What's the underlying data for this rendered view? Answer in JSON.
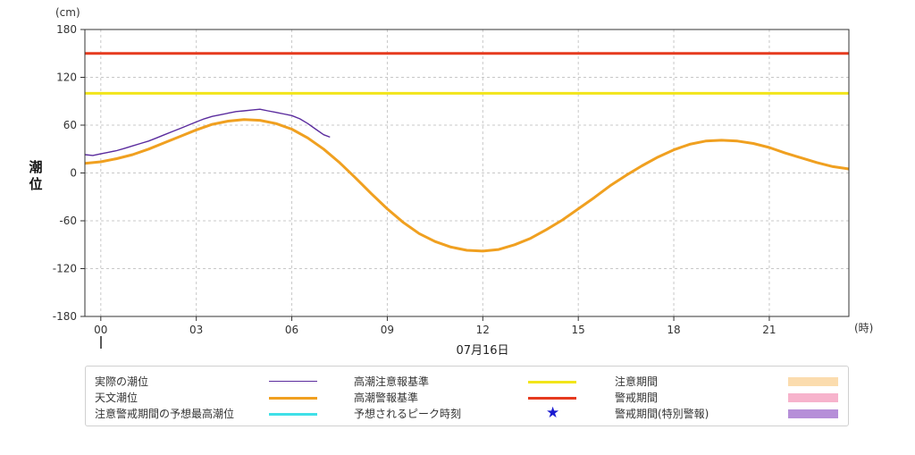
{
  "chart_data": {
    "type": "line",
    "y_unit_label": "(cm)",
    "x_unit_label": "(時)",
    "ylabel": "潮位",
    "date_label": "07月16日",
    "ylim": [
      -180,
      180
    ],
    "yticks": [
      180,
      120,
      60,
      0,
      -60,
      -120,
      -180
    ],
    "xlim": [
      -0.5,
      23.5
    ],
    "xticks": [
      0,
      3,
      6,
      9,
      12,
      15,
      18,
      21
    ],
    "xtick_labels": [
      "00",
      "03",
      "06",
      "09",
      "12",
      "15",
      "18",
      "21"
    ],
    "grid": true,
    "series": [
      {
        "name": "実際の潮位",
        "color": "#5b2c9e",
        "x": [
          -0.5,
          -0.25,
          0,
          0.25,
          0.5,
          0.75,
          1,
          1.25,
          1.5,
          1.75,
          2,
          2.25,
          2.5,
          2.75,
          3,
          3.25,
          3.5,
          3.75,
          4,
          4.25,
          4.5,
          4.75,
          5,
          5.25,
          5.5,
          5.75,
          6,
          6.25,
          6.5,
          6.75,
          7,
          7.2
        ],
        "values": [
          23,
          22,
          24,
          26,
          28,
          31,
          34,
          37,
          40,
          44,
          48,
          52,
          56,
          60,
          64,
          68,
          71,
          73,
          75,
          77,
          78,
          79,
          80,
          78,
          76,
          74,
          72,
          68,
          62,
          55,
          48,
          45
        ]
      },
      {
        "name": "天文潮位",
        "color": "#f0a020",
        "x": [
          -0.5,
          0,
          0.5,
          1,
          1.5,
          2,
          2.5,
          3,
          3.5,
          4,
          4.5,
          5,
          5.5,
          6,
          6.5,
          7,
          7.5,
          8,
          8.5,
          9,
          9.5,
          10,
          10.5,
          11,
          11.5,
          12,
          12.5,
          13,
          13.5,
          14,
          14.5,
          15,
          15.5,
          16,
          16.5,
          17,
          17.5,
          18,
          18.5,
          19,
          19.5,
          20,
          20.5,
          21,
          21.5,
          22,
          22.5,
          23,
          23.5
        ],
        "values": [
          12,
          14,
          18,
          23,
          30,
          38,
          46,
          54,
          61,
          65,
          67,
          66,
          62,
          55,
          44,
          30,
          13,
          -6,
          -26,
          -45,
          -62,
          -76,
          -86,
          -93,
          -97,
          -98,
          -96,
          -90,
          -82,
          -71,
          -59,
          -45,
          -31,
          -16,
          -3,
          9,
          20,
          29,
          36,
          40,
          41,
          40,
          37,
          32,
          25,
          19,
          13,
          8,
          5
        ]
      }
    ],
    "reference_lines": [
      {
        "name": "高潮注意報基準",
        "value": 100,
        "color": "#f2e51a"
      },
      {
        "name": "高潮警報基準",
        "value": 150,
        "color": "#e63a1e"
      }
    ]
  },
  "legend": {
    "col1": [
      {
        "label": "実際の潮位",
        "color": "#5b2c9e",
        "kind": "thin-line"
      },
      {
        "label": "天文潮位",
        "color": "#f0a020",
        "kind": "thick-line"
      },
      {
        "label": "注意警戒期間の予想最高潮位",
        "color": "#40e0e8",
        "kind": "thick-line"
      }
    ],
    "col2": [
      {
        "label": "高潮注意報基準",
        "color": "#f2e51a",
        "kind": "thick-line"
      },
      {
        "label": "高潮警報基準",
        "color": "#e63a1e",
        "kind": "thick-line"
      },
      {
        "label": "予想されるピーク時刻",
        "color": "#1a1ad0",
        "kind": "star",
        "symbol": "★"
      }
    ],
    "col3": [
      {
        "label": "注意期間",
        "color": "#fbdcae",
        "kind": "box"
      },
      {
        "label": "警戒期間",
        "color": "#f7b3cc",
        "kind": "box"
      },
      {
        "label": "警戒期間(特別警報)",
        "color": "#b68fd8",
        "kind": "box"
      }
    ]
  }
}
